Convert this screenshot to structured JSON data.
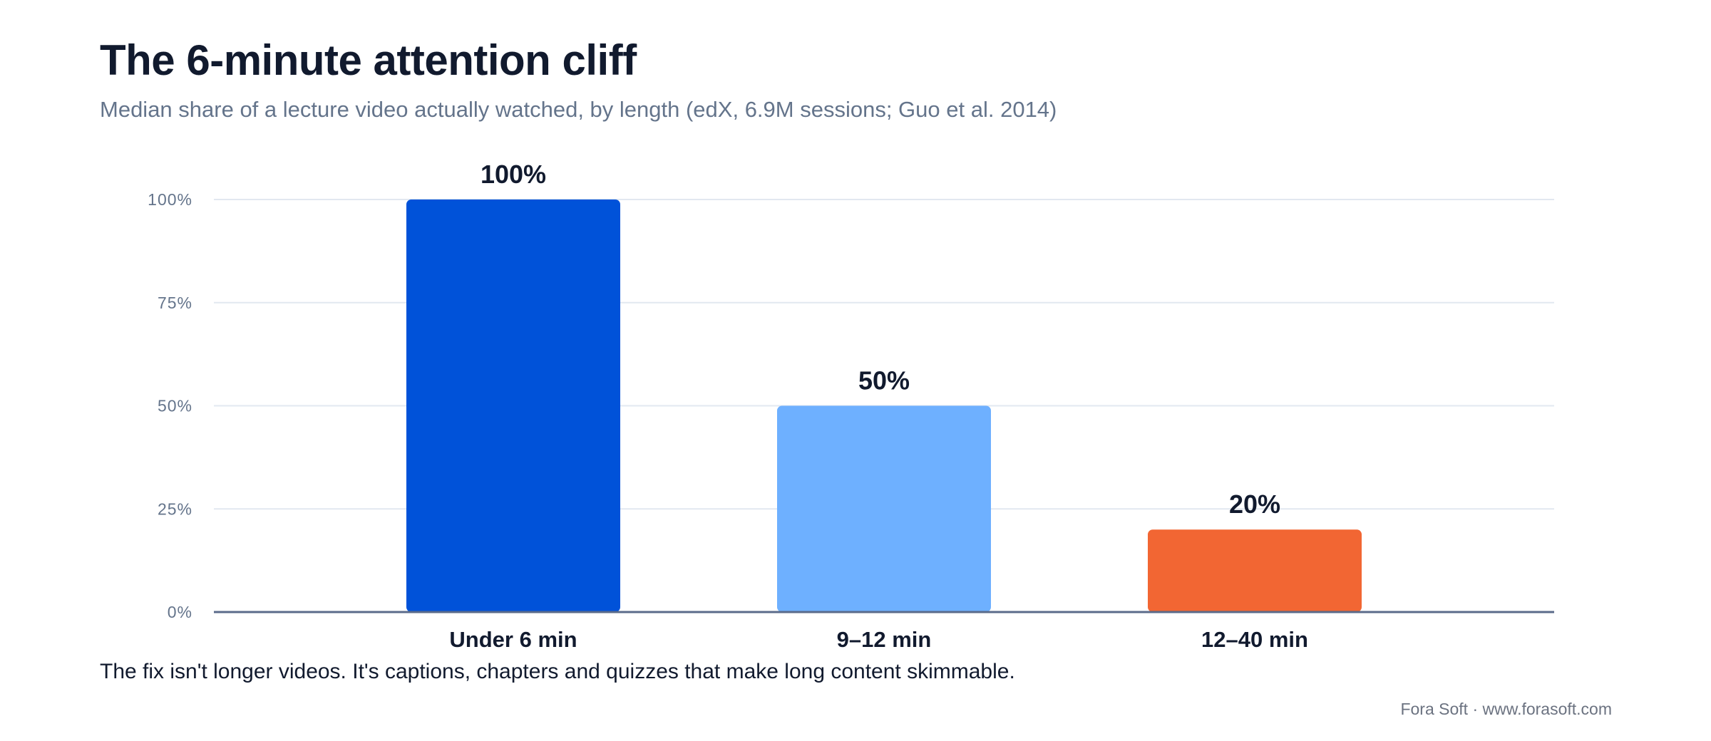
{
  "title": "The 6-minute attention cliff",
  "subtitle": "Median share of a lecture video actually watched, by length (edX, 6.9M sessions; Guo et al. 2014)",
  "note": "The fix isn't longer videos. It's captions, chapters and quizzes that make long content skimmable.",
  "credit": "Fora Soft · www.forasoft.com",
  "chart_data": {
    "type": "bar",
    "title": "The 6-minute attention cliff",
    "categories": [
      "Under 6 min",
      "9–12 min",
      "12–40 min"
    ],
    "values": [
      100,
      50,
      20
    ],
    "data_labels": [
      "100%",
      "50%",
      "20%"
    ],
    "colors": [
      "#0052d9",
      "#6eb0ff",
      "#f26633"
    ],
    "ylim": [
      0,
      100
    ],
    "yticks": [
      0,
      25,
      50,
      75,
      100
    ],
    "ytick_labels": [
      "0%",
      "25%",
      "50%",
      "75%",
      "100%"
    ],
    "grid": true,
    "legend": "none"
  }
}
